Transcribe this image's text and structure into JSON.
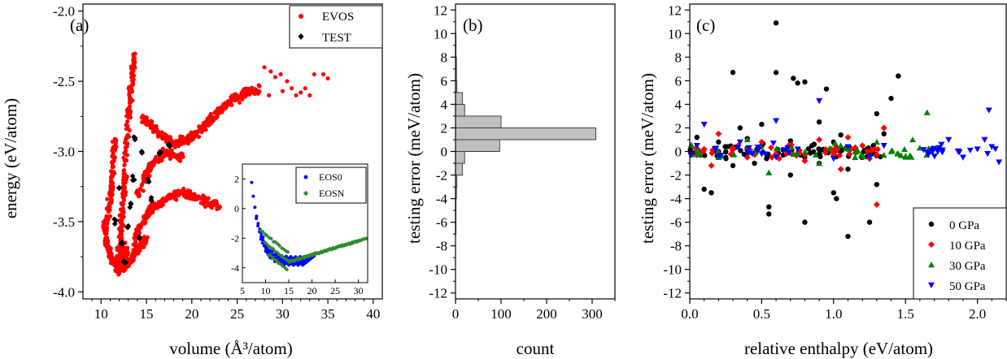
{
  "chart_data": [
    {
      "type": "scatter",
      "panel_label": "(a)",
      "xlabel": "volume (Å³/atom)",
      "ylabel": "energy (eV/atom)",
      "xlim": [
        8,
        41
      ],
      "ylim": [
        -4.05,
        -1.95
      ],
      "xticks": [
        10,
        15,
        20,
        25,
        30,
        35,
        40
      ],
      "yticks": [
        -4.0,
        -3.5,
        -3.0,
        -2.5,
        -2.0
      ],
      "xtick_labels": [
        "10",
        "15",
        "20",
        "25",
        "30",
        "35",
        "40"
      ],
      "ytick_labels": [
        "-4.0",
        "-3.5",
        "-3.0",
        "-2.5",
        "-2.0"
      ],
      "legend_position": "top-right",
      "series": [
        {
          "name": "EVOS",
          "color": "#ff0000",
          "marker": "circle",
          "description_points": [
            [
              12.5,
              -3.85
            ],
            [
              12,
              -3.75
            ],
            [
              11,
              -3.6
            ],
            [
              10.2,
              -3.45
            ],
            [
              13.5,
              -2.32
            ],
            [
              13,
              -2.5
            ],
            [
              12.8,
              -2.7
            ],
            [
              12.5,
              -3.0
            ],
            [
              12.2,
              -3.2
            ],
            [
              11.5,
              -3.4
            ],
            [
              15,
              -2.8
            ],
            [
              17,
              -2.85
            ],
            [
              20,
              -2.95
            ],
            [
              23,
              -2.75
            ],
            [
              26,
              -2.6
            ],
            [
              28,
              -2.4
            ],
            [
              29,
              -2.45
            ],
            [
              32,
              -2.55
            ],
            [
              34,
              -2.45
            ],
            [
              35,
              -2.48
            ],
            [
              23,
              -3.4
            ],
            [
              15,
              -3.5
            ],
            [
              14,
              -3.65
            ],
            [
              16,
              -3.3
            ],
            [
              18,
              -3.1
            ]
          ]
        },
        {
          "name": "TEST",
          "color": "#000000",
          "marker": "diamond",
          "description_points": [
            [
              12.3,
              -3.65
            ],
            [
              12.6,
              -3.8
            ],
            [
              13.5,
              -3.2
            ],
            [
              13.7,
              -2.9
            ],
            [
              13.3,
              -3.4
            ],
            [
              14.5,
              -3.0
            ],
            [
              15.2,
              -3.2
            ],
            [
              16.5,
              -3.0
            ],
            [
              17.5,
              -2.95
            ],
            [
              12,
              -3.25
            ],
            [
              11.5,
              -3.5
            ],
            [
              13,
              -3.55
            ],
            [
              14.2,
              -3.6
            ],
            [
              15.5,
              -3.35
            ]
          ]
        }
      ],
      "inset": {
        "xlim": [
          5,
          32
        ],
        "ylim": [
          -5,
          3
        ],
        "xticks": [
          5,
          10,
          15,
          20,
          25,
          30
        ],
        "yticks": [
          -4,
          -2,
          0,
          2
        ],
        "xtick_labels": [
          "5",
          "10",
          "15",
          "20",
          "25",
          "30"
        ],
        "ytick_labels": [
          "-4",
          "-2",
          "0",
          "2"
        ],
        "legend_position": "top-right",
        "series": [
          {
            "name": "EOS0",
            "color": "#0000ff",
            "marker": "circle"
          },
          {
            "name": "EOSN",
            "color": "#2e8b2e",
            "marker": "diamond"
          }
        ]
      }
    },
    {
      "type": "bar",
      "orientation": "horizontal",
      "panel_label": "(b)",
      "xlabel": "count",
      "ylabel": "testing error (meV/atom)",
      "xlim": [
        0,
        350
      ],
      "ylim": [
        -12.5,
        12.5
      ],
      "xticks": [
        0,
        100,
        200,
        300
      ],
      "yticks": [
        -12,
        -10,
        -8,
        -6,
        -4,
        -2,
        0,
        2,
        4,
        6,
        8,
        10,
        12
      ],
      "xtick_labels": [
        "0",
        "100",
        "200",
        "300"
      ],
      "ytick_labels": [
        "-12",
        "-10",
        "-8",
        "-6",
        "-4",
        "-2",
        "0",
        "2",
        "4",
        "6",
        "8",
        "10",
        "12"
      ],
      "bin_edges": [
        -12,
        -11,
        -10,
        -9,
        -8,
        -7,
        -6,
        -5,
        -4,
        -3,
        -2,
        -1,
        0,
        1,
        2,
        3,
        4,
        5,
        6,
        7,
        8,
        9,
        10,
        11,
        12
      ],
      "counts": [
        0,
        0,
        0,
        0,
        0,
        1,
        1,
        1,
        2,
        3,
        15,
        20,
        97,
        308,
        100,
        20,
        15,
        3,
        2,
        2,
        1,
        1,
        0,
        0
      ],
      "bar_color": "#c0c0c0"
    },
    {
      "type": "scatter",
      "panel_label": "(c)",
      "xlabel": "relative enthalpy (eV/atom)",
      "ylabel": "testing error (meV/atom)",
      "xlim": [
        0,
        2.2
      ],
      "ylim": [
        -12.5,
        12.5
      ],
      "xticks": [
        0,
        0.5,
        1.0,
        1.5,
        2.0
      ],
      "yticks": [
        -12,
        -10,
        -8,
        -6,
        -4,
        -2,
        0,
        2,
        4,
        6,
        8,
        10,
        12
      ],
      "xtick_labels": [
        "0.0",
        "0.5",
        "1.0",
        "1.5",
        "2.0"
      ],
      "ytick_labels": [
        "-12",
        "-10",
        "-8",
        "-6",
        "-4",
        "-2",
        "0",
        "2",
        "4",
        "6",
        "8",
        "10",
        "12"
      ],
      "legend_position": "bottom-right",
      "series": [
        {
          "name": "0 GPa",
          "color": "#000000",
          "marker": "circle",
          "points": [
            [
              0.05,
              1.2
            ],
            [
              0.1,
              -3.2
            ],
            [
              0.15,
              -3.5
            ],
            [
              0.2,
              0.8
            ],
            [
              0.25,
              -0.5
            ],
            [
              0.3,
              6.7
            ],
            [
              0.35,
              2.0
            ],
            [
              0.4,
              0.3
            ],
            [
              0.45,
              -1.0
            ],
            [
              0.5,
              2.3
            ],
            [
              0.55,
              -5.3
            ],
            [
              0.55,
              -4.7
            ],
            [
              0.6,
              10.9
            ],
            [
              0.6,
              6.7
            ],
            [
              0.65,
              -0.3
            ],
            [
              0.7,
              0.9
            ],
            [
              0.72,
              6.2
            ],
            [
              0.75,
              5.8
            ],
            [
              0.8,
              5.9
            ],
            [
              0.8,
              -6.0
            ],
            [
              0.85,
              0.5
            ],
            [
              0.9,
              -1.0
            ],
            [
              0.95,
              5.3
            ],
            [
              1.0,
              -3.5
            ],
            [
              1.02,
              -4.0
            ],
            [
              1.05,
              1.4
            ],
            [
              1.1,
              -7.2
            ],
            [
              1.15,
              0.2
            ],
            [
              1.2,
              -0.5
            ],
            [
              1.25,
              -6.0
            ],
            [
              1.3,
              -2.8
            ],
            [
              1.35,
              1.5
            ],
            [
              1.4,
              4.5
            ],
            [
              1.45,
              6.4
            ],
            [
              1.3,
              3.2
            ],
            [
              0.3,
              -1.2
            ],
            [
              0.4,
              1.1
            ],
            [
              0.7,
              -2.0
            ],
            [
              0.9,
              2.5
            ],
            [
              1.1,
              -1.5
            ],
            [
              0.2,
              0.0
            ],
            [
              0.5,
              0.5
            ],
            [
              0.8,
              -0.5
            ],
            [
              1.0,
              0.8
            ]
          ]
        },
        {
          "name": "10 GPa",
          "color": "#ff0000",
          "marker": "diamond",
          "points": [
            [
              0.05,
              -0.3
            ],
            [
              0.1,
              0.2
            ],
            [
              0.15,
              -1.2
            ],
            [
              0.2,
              1.5
            ],
            [
              0.3,
              0.3
            ],
            [
              0.4,
              -0.5
            ],
            [
              0.5,
              0.8
            ],
            [
              0.6,
              -0.2
            ],
            [
              0.7,
              0.4
            ],
            [
              0.8,
              -0.8
            ],
            [
              0.9,
              1.0
            ],
            [
              1.0,
              -0.3
            ],
            [
              1.05,
              -1.5
            ],
            [
              1.1,
              1.2
            ],
            [
              1.2,
              0.5
            ],
            [
              1.3,
              -4.5
            ],
            [
              1.35,
              2.0
            ],
            [
              1.25,
              -0.6
            ]
          ]
        },
        {
          "name": "30 GPa",
          "color": "#008000",
          "marker": "triangle-up",
          "points": [
            [
              0.05,
              0.1
            ],
            [
              0.2,
              -0.5
            ],
            [
              0.4,
              1.0
            ],
            [
              0.55,
              -1.8
            ],
            [
              0.7,
              0.3
            ],
            [
              0.9,
              -1.0
            ],
            [
              1.05,
              0.5
            ],
            [
              1.15,
              -0.5
            ],
            [
              1.3,
              0.8
            ],
            [
              1.4,
              0.0
            ],
            [
              1.5,
              -0.4
            ],
            [
              1.6,
              0.3
            ],
            [
              1.65,
              3.3
            ],
            [
              1.55,
              1.0
            ],
            [
              1.45,
              -0.2
            ]
          ]
        },
        {
          "name": "50 GPa",
          "color": "#0000ff",
          "marker": "triangle-down",
          "points": [
            [
              0.05,
              0.5
            ],
            [
              0.1,
              2.3
            ],
            [
              0.2,
              -0.4
            ],
            [
              0.35,
              0.8
            ],
            [
              0.5,
              -0.2
            ],
            [
              0.6,
              2.6
            ],
            [
              0.75,
              0.2
            ],
            [
              0.9,
              4.3
            ],
            [
              1.0,
              -0.6
            ],
            [
              1.1,
              0.4
            ],
            [
              1.25,
              -0.5
            ],
            [
              1.35,
              0.5
            ],
            [
              1.75,
              0.6
            ],
            [
              1.8,
              1.0
            ],
            [
              1.9,
              -0.5
            ],
            [
              2.0,
              0.2
            ],
            [
              2.05,
              1.0
            ],
            [
              2.08,
              3.5
            ],
            [
              2.15,
              -0.9
            ],
            [
              1.95,
              0.1
            ],
            [
              2.1,
              0.4
            ]
          ]
        }
      ]
    }
  ]
}
